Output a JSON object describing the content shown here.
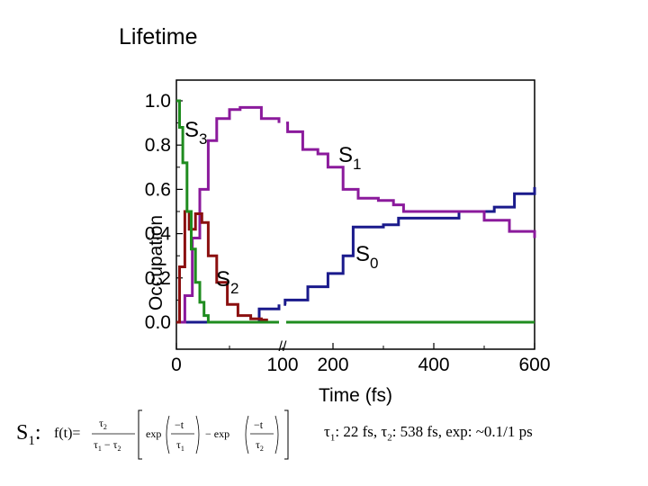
{
  "slide": {
    "title": "Lifetime",
    "formula_label": "S",
    "formula_label_sub": "1",
    "formula_label_colon": ":",
    "formula": {
      "lhs": "f(t)=",
      "tau2": "τ",
      "tau2_sub": "2",
      "den_a": "τ",
      "den_a_sub": "1",
      "den_minus": "−",
      "den_b": "τ",
      "den_b_sub": "2",
      "exp1": "exp",
      "minus_t": "−t",
      "tau1": "τ",
      "tau1_sub": "1",
      "minus": "− exp",
      "exp2_num": "−t",
      "exp2_den": "τ",
      "exp2_den_sub": "2"
    },
    "lifetimes": {
      "t1_symbol": "τ",
      "t1_sub": "1",
      "t1_text": ": 22 fs, ",
      "t2_symbol": "τ",
      "t2_sub": "2",
      "t2_text": ": 538 fs, exp: ~0.1/1 ps"
    }
  },
  "chart_data": {
    "type": "line",
    "title": "",
    "xlabel": "Time (fs)",
    "ylabel": "Occupation",
    "x_axis_broken": true,
    "x_segments": [
      {
        "range": [
          0,
          100
        ],
        "ticks": [
          "0",
          "100"
        ]
      },
      {
        "range": [
          100,
          600
        ],
        "ticks": [
          "200",
          "400",
          "600"
        ]
      }
    ],
    "x_ticks": [
      "0",
      "100",
      "200",
      "400",
      "600"
    ],
    "ylim": [
      0,
      1.0
    ],
    "y_ticks": [
      "0.0",
      "0.2",
      "0.4",
      "0.6",
      "0.8",
      "1.0"
    ],
    "break_mark": "//",
    "grid": false,
    "series": [
      {
        "name": "S0",
        "label": "S",
        "label_sub": "0",
        "color": "#1a1a8c",
        "points": [
          [
            0,
            0
          ],
          [
            75,
            0
          ],
          [
            78,
            0.06
          ],
          [
            100,
            0.08
          ],
          [
            105,
            0.1
          ],
          [
            150,
            0.16
          ],
          [
            190,
            0.22
          ],
          [
            220,
            0.3
          ],
          [
            240,
            0.43
          ],
          [
            300,
            0.44
          ],
          [
            330,
            0.47
          ],
          [
            450,
            0.5
          ],
          [
            520,
            0.52
          ],
          [
            560,
            0.58
          ],
          [
            600,
            0.61
          ]
        ]
      },
      {
        "name": "S1",
        "label": "S",
        "label_sub": "1",
        "color": "#8b1a9c",
        "points": [
          [
            0,
            0
          ],
          [
            8,
            0.12
          ],
          [
            15,
            0.38
          ],
          [
            22,
            0.6
          ],
          [
            30,
            0.82
          ],
          [
            38,
            0.92
          ],
          [
            50,
            0.96
          ],
          [
            60,
            0.97
          ],
          [
            80,
            0.92
          ],
          [
            100,
            0.9
          ],
          [
            110,
            0.86
          ],
          [
            140,
            0.78
          ],
          [
            170,
            0.76
          ],
          [
            190,
            0.7
          ],
          [
            220,
            0.6
          ],
          [
            250,
            0.56
          ],
          [
            290,
            0.55
          ],
          [
            320,
            0.53
          ],
          [
            340,
            0.5
          ],
          [
            400,
            0.5
          ],
          [
            450,
            0.5
          ],
          [
            500,
            0.46
          ],
          [
            550,
            0.41
          ],
          [
            600,
            0.38
          ]
        ]
      },
      {
        "name": "S2",
        "label": "S",
        "label_sub": "2",
        "color": "#8b1010",
        "points": [
          [
            0,
            0
          ],
          [
            3,
            0.25
          ],
          [
            8,
            0.5
          ],
          [
            12,
            0.42
          ],
          [
            18,
            0.49
          ],
          [
            24,
            0.45
          ],
          [
            30,
            0.3
          ],
          [
            38,
            0.18
          ],
          [
            48,
            0.08
          ],
          [
            58,
            0.03
          ],
          [
            70,
            0.015
          ],
          [
            80,
            0.01
          ],
          [
            85,
            0
          ],
          [
            100,
            0
          ],
          [
            600,
            0
          ]
        ]
      },
      {
        "name": "S3",
        "label": "S",
        "label_sub": "3",
        "color": "#1f8c1f",
        "points": [
          [
            0,
            1.0
          ],
          [
            3,
            0.88
          ],
          [
            6,
            0.72
          ],
          [
            10,
            0.5
          ],
          [
            14,
            0.33
          ],
          [
            18,
            0.18
          ],
          [
            22,
            0.09
          ],
          [
            26,
            0.03
          ],
          [
            30,
            0
          ],
          [
            100,
            0
          ],
          [
            600,
            0
          ]
        ]
      }
    ],
    "colors": {
      "axis": "#000000",
      "background": "#ffffff"
    }
  }
}
